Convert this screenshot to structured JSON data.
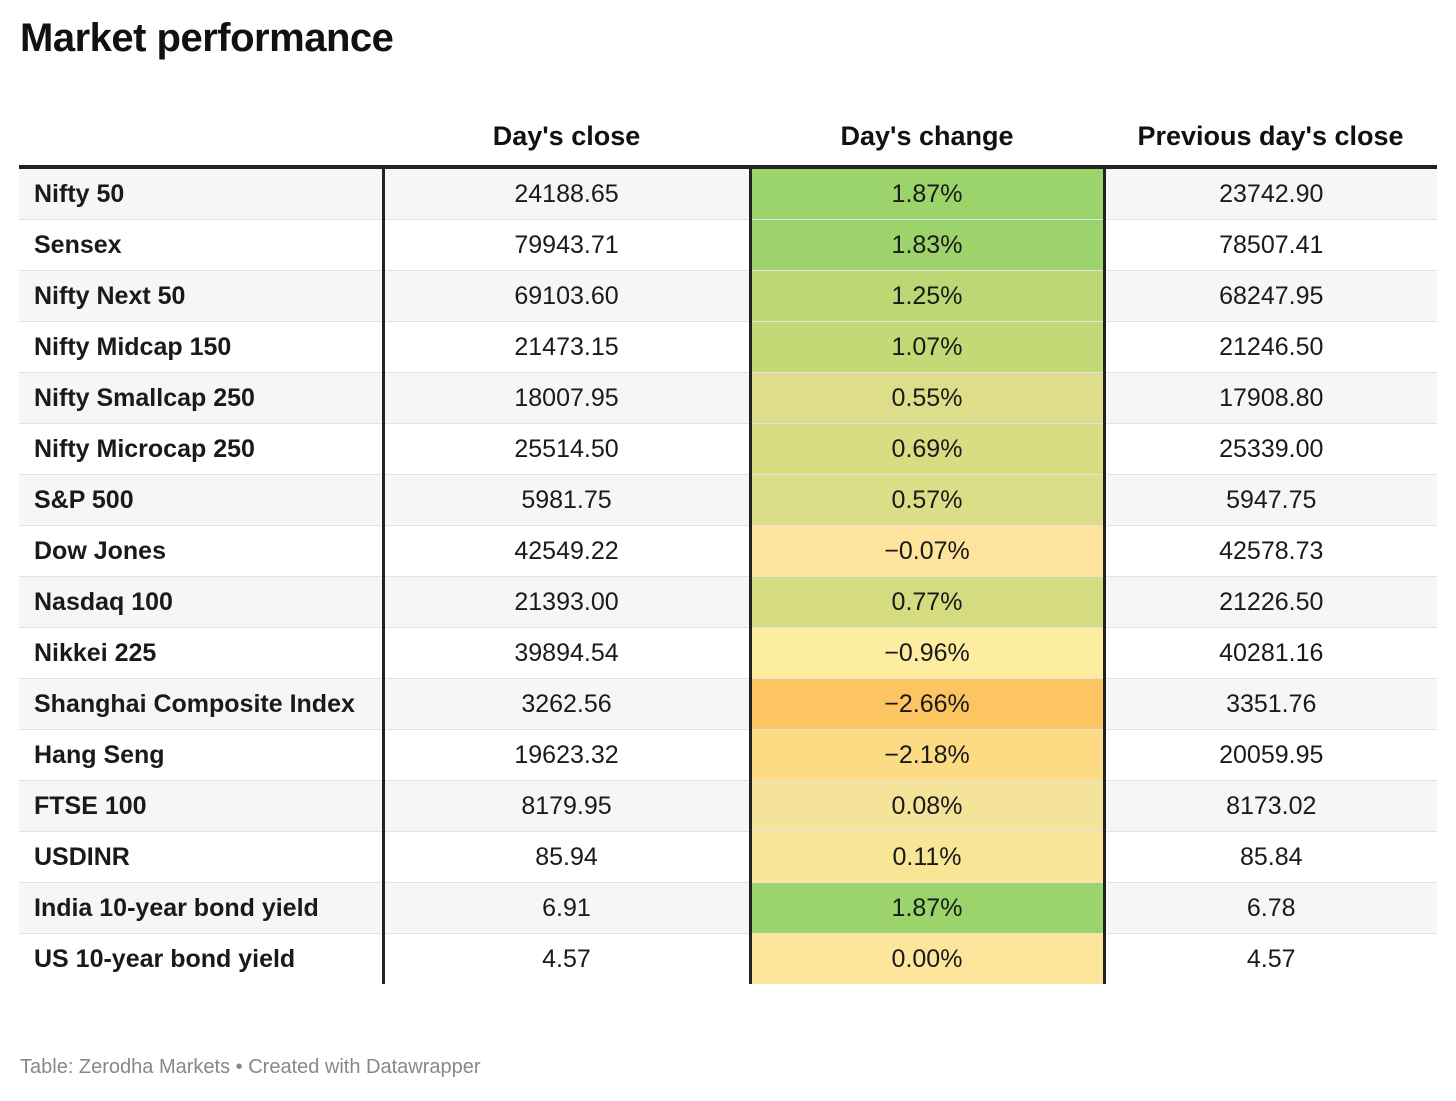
{
  "title": "Market performance",
  "columns": [
    "",
    "Day's close",
    "Day's change",
    "Previous day's close"
  ],
  "rows": [
    {
      "name": "Nifty 50",
      "close": "24188.65",
      "change": "1.87%",
      "prev": "23742.90",
      "color": "#9ad46a"
    },
    {
      "name": "Sensex",
      "close": "79943.71",
      "change": "1.83%",
      "prev": "78507.41",
      "color": "#9cd46b"
    },
    {
      "name": "Nifty Next 50",
      "close": "69103.60",
      "change": "1.25%",
      "prev": "68247.95",
      "color": "#bcd875"
    },
    {
      "name": "Nifty Midcap 150",
      "close": "21473.15",
      "change": "1.07%",
      "prev": "21246.50",
      "color": "#c2d976"
    },
    {
      "name": "Nifty Smallcap 250",
      "close": "18007.95",
      "change": "0.55%",
      "prev": "17908.80",
      "color": "#dede8a"
    },
    {
      "name": "Nifty Microcap 250",
      "close": "25514.50",
      "change": "0.69%",
      "prev": "25339.00",
      "color": "#d9dc83"
    },
    {
      "name": "S&P 500",
      "close": "5981.75",
      "change": "0.57%",
      "prev": "5947.75",
      "color": "#dcdd87"
    },
    {
      "name": "Dow Jones",
      "close": "42549.22",
      "change": "−0.07%",
      "prev": "42578.73",
      "color": "#fde39c"
    },
    {
      "name": "Nasdaq 100",
      "close": "21393.00",
      "change": "0.77%",
      "prev": "21226.50",
      "color": "#d5dc80"
    },
    {
      "name": "Nikkei 225",
      "close": "39894.54",
      "change": "−0.96%",
      "prev": "40281.16",
      "color": "#fdeda0"
    },
    {
      "name": "Shanghai Composite Index",
      "close": "3262.56",
      "change": "−2.66%",
      "prev": "3351.76",
      "color": "#fdc561"
    },
    {
      "name": "Hang Seng",
      "close": "19623.32",
      "change": "−2.18%",
      "prev": "20059.95",
      "color": "#fddb84"
    },
    {
      "name": "FTSE 100",
      "close": "8179.95",
      "change": "0.08%",
      "prev": "8173.02",
      "color": "#f6e39a"
    },
    {
      "name": "USDINR",
      "close": "85.94",
      "change": "0.11%",
      "prev": "85.84",
      "color": "#f9e596"
    },
    {
      "name": "India 10-year bond yield",
      "close": "6.91",
      "change": "1.87%",
      "prev": "6.78",
      "color": "#9ad46a"
    },
    {
      "name": "US 10-year bond yield",
      "close": "4.57",
      "change": "0.00%",
      "prev": "4.57",
      "color": "#fde59c"
    }
  ],
  "footer": "Table: Zerodha Markets • Created with Datawrapper"
}
